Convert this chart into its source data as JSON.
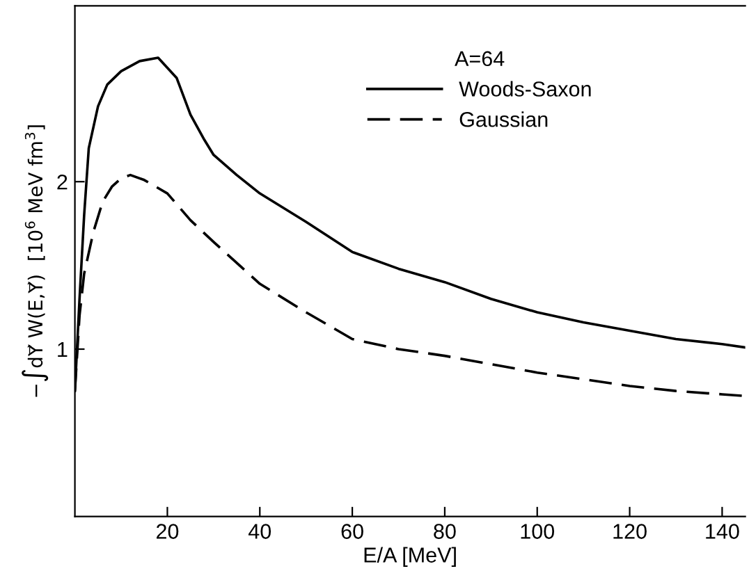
{
  "chart_data": {
    "type": "line",
    "xlabel": "E/A [MeV]",
    "ylabel": "−∫dY⃗ W(E,Y⃗)  [10$^{6}$ MeV fm$^{3}$]",
    "legend_title": "A=64",
    "legend": "top right",
    "grid": false,
    "marker": "none",
    "xlim": [
      0,
      145
    ],
    "ylim": [
      0,
      3.05
    ],
    "xticks": [
      20,
      40,
      60,
      80,
      100,
      120,
      140
    ],
    "yticks": [
      1,
      2
    ],
    "series": [
      {
        "name": "Woods-Saxon",
        "color": "#000000",
        "line_style": "solid",
        "x": [
          0,
          1,
          2,
          3,
          5,
          7,
          10,
          14,
          18,
          22,
          25,
          28,
          30,
          35,
          40,
          50,
          60,
          70,
          80,
          90,
          100,
          110,
          120,
          130,
          140,
          145
        ],
        "values": [
          0.75,
          1.3,
          1.8,
          2.2,
          2.45,
          2.58,
          2.66,
          2.72,
          2.74,
          2.62,
          2.4,
          2.25,
          2.16,
          2.04,
          1.93,
          1.76,
          1.58,
          1.48,
          1.4,
          1.3,
          1.22,
          1.16,
          1.11,
          1.06,
          1.03,
          1.01
        ]
      },
      {
        "name": "Gaussian",
        "color": "#000000",
        "line_style": "dashed",
        "x": [
          0,
          1,
          2,
          4,
          6,
          8,
          10,
          12,
          15,
          20,
          25,
          30,
          40,
          50,
          60,
          70,
          80,
          90,
          100,
          110,
          120,
          130,
          140,
          145
        ],
        "values": [
          0.75,
          1.2,
          1.45,
          1.7,
          1.88,
          1.97,
          2.02,
          2.04,
          2.01,
          1.93,
          1.77,
          1.64,
          1.39,
          1.22,
          1.06,
          1.0,
          0.96,
          0.91,
          0.86,
          0.82,
          0.78,
          0.75,
          0.73,
          0.72
        ]
      }
    ]
  }
}
